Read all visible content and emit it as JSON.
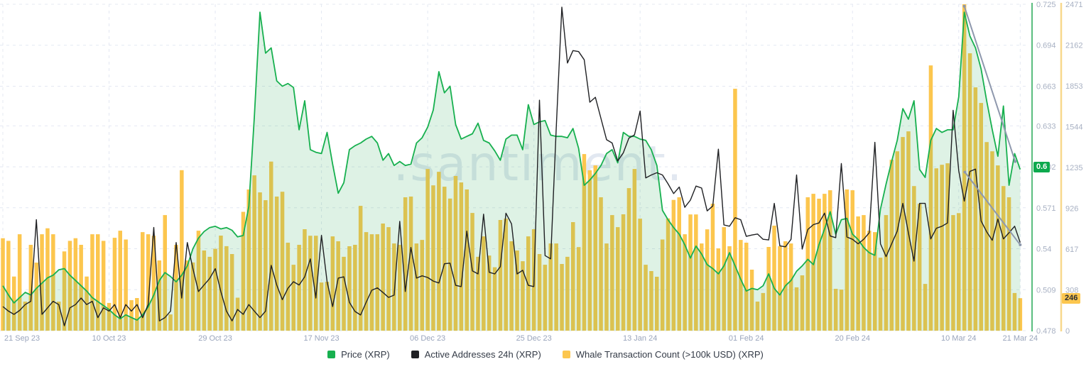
{
  "watermark": {
    "text": ".santiment."
  },
  "legend": {
    "items": [
      {
        "label": "Price (XRP)",
        "color": "#17b04f"
      },
      {
        "label": "Active Addresses 24h (XRP)",
        "color": "#1f2023"
      },
      {
        "label": "Whale Transaction Count (>100k USD) (XRP)",
        "color": "#fcc64e"
      }
    ]
  },
  "badges": {
    "price": {
      "text": "0.6",
      "bg": "#0ca94d",
      "fg": "#ffffff"
    },
    "whale": {
      "text": "246",
      "bg": "#fcc64e",
      "fg": "#272c33"
    }
  },
  "chart_data": {
    "type": "mixed",
    "title": "",
    "x": {
      "start_label": "21 Sep 23",
      "end_label": "21 Mar 24",
      "days": 183,
      "tick_labels": [
        "21 Sep 23",
        "10 Oct 23",
        "29 Oct 23",
        "17 Nov 23",
        "06 Dec 23",
        "25 Dec 23",
        "13 Jan 24",
        "01 Feb 24",
        "20 Feb 24",
        "10 Mar 24",
        "21 Mar 24"
      ],
      "tick_day_index": [
        0,
        19,
        38,
        57,
        76,
        95,
        114,
        133,
        152,
        171,
        182
      ],
      "label_color": "#9aa5bc"
    },
    "axes": {
      "price": {
        "side": "right-inner",
        "min": 0.478,
        "max": 0.725,
        "ticks": [
          "0.725",
          "0.694",
          "0.663",
          "0.633",
          "0.602",
          "0.571",
          "0.54",
          "0.509",
          "0.478"
        ],
        "line_color": "#5abd7f",
        "label_color": "#a8b1c3"
      },
      "whale": {
        "side": "right-outer",
        "min": 0,
        "max": 2471,
        "ticks": [
          "2471",
          "2162",
          "1853",
          "1544",
          "1235",
          "926",
          "617",
          "308",
          "0"
        ],
        "line_color": "#f8d88c",
        "label_color": "#a8b1c3"
      }
    },
    "grid": {
      "color": "#e4e8f2",
      "dash": "4 5"
    },
    "series": [
      {
        "name": "Price (XRP)",
        "type": "line-area",
        "axis": "price",
        "color": "#17b04f",
        "fill": "rgba(47,177,92,0.16)",
        "values": [
          0.512,
          0.505,
          0.499,
          0.503,
          0.507,
          0.505,
          0.51,
          0.514,
          0.518,
          0.52,
          0.524,
          0.525,
          0.52,
          0.516,
          0.512,
          0.508,
          0.503,
          0.5,
          0.497,
          0.494,
          0.49,
          0.487,
          0.49,
          0.488,
          0.486,
          0.49,
          0.496,
          0.505,
          0.516,
          0.522,
          0.519,
          0.515,
          0.52,
          0.527,
          0.54,
          0.548,
          0.553,
          0.556,
          0.557,
          0.555,
          0.556,
          0.554,
          0.549,
          0.55,
          0.572,
          0.64,
          0.719,
          0.688,
          0.692,
          0.667,
          0.663,
          0.665,
          0.662,
          0.63,
          0.652,
          0.615,
          0.613,
          0.612,
          0.628,
          0.604,
          0.582,
          0.59,
          0.615,
          0.618,
          0.62,
          0.623,
          0.625,
          0.62,
          0.607,
          0.612,
          0.603,
          0.606,
          0.603,
          0.604,
          0.62,
          0.624,
          0.632,
          0.645,
          0.674,
          0.658,
          0.663,
          0.634,
          0.623,
          0.625,
          0.627,
          0.635,
          0.622,
          0.62,
          0.614,
          0.607,
          0.623,
          0.626,
          0.626,
          0.615,
          0.649,
          0.634,
          0.636,
          0.637,
          0.626,
          0.625,
          0.625,
          0.624,
          0.631,
          0.616,
          0.588,
          0.592,
          0.597,
          0.603,
          0.612,
          0.615,
          0.605,
          0.628,
          0.625,
          0.625,
          0.623,
          0.622,
          0.615,
          0.603,
          0.569,
          0.562,
          0.556,
          0.551,
          0.543,
          0.533,
          0.542,
          0.536,
          0.528,
          0.525,
          0.521,
          0.527,
          0.537,
          0.527,
          0.517,
          0.508,
          0.51,
          0.509,
          0.512,
          0.521,
          0.51,
          0.505,
          0.512,
          0.516,
          0.523,
          0.527,
          0.532,
          0.528,
          0.543,
          0.555,
          0.568,
          0.551,
          0.562,
          0.563,
          0.551,
          0.547,
          0.541,
          0.537,
          0.535,
          0.57,
          0.589,
          0.606,
          0.622,
          0.646,
          0.638,
          0.652,
          0.6,
          0.594,
          0.622,
          0.631,
          0.628,
          0.63,
          0.63,
          0.655,
          0.719,
          0.701,
          0.692,
          0.676,
          0.652,
          0.63,
          0.61,
          0.648,
          0.588,
          0.612,
          0.6
        ]
      },
      {
        "name": "Active Addresses 24h (XRP)",
        "type": "line",
        "axis": "hidden",
        "unit": "fraction_of_plot_height",
        "color": "#1f2023",
        "values": [
          0.074,
          0.06,
          0.05,
          0.062,
          0.08,
          0.09,
          0.34,
          0.05,
          0.07,
          0.09,
          0.08,
          0.015,
          0.07,
          0.08,
          0.1,
          0.08,
          0.09,
          0.04,
          0.07,
          0.06,
          0.08,
          0.04,
          0.08,
          0.06,
          0.08,
          0.04,
          0.08,
          0.316,
          0.03,
          0.04,
          0.06,
          0.27,
          0.1,
          0.27,
          0.19,
          0.12,
          0.14,
          0.16,
          0.19,
          0.12,
          0.06,
          0.03,
          0.065,
          0.05,
          0.08,
          0.06,
          0.04,
          0.06,
          0.2,
          0.14,
          0.095,
          0.13,
          0.15,
          0.14,
          0.165,
          0.22,
          0.1,
          0.292,
          0.15,
          0.074,
          0.161,
          0.165,
          0.087,
          0.059,
          0.048,
          0.087,
          0.124,
          0.131,
          0.117,
          0.102,
          0.109,
          0.335,
          0.12,
          0.255,
          0.161,
          0.168,
          0.163,
          0.152,
          0.146,
          0.205,
          0.207,
          0.139,
          0.135,
          0.305,
          0.183,
          0.174,
          0.357,
          0.179,
          0.174,
          0.196,
          0.36,
          0.327,
          0.174,
          0.185,
          0.139,
          0.135,
          0.706,
          0.23,
          0.22,
          0.62,
          0.991,
          0.82,
          0.858,
          0.855,
          0.83,
          0.7,
          0.715,
          0.65,
          0.585,
          0.575,
          0.52,
          0.545,
          0.59,
          0.6,
          0.673,
          0.468,
          0.477,
          0.484,
          0.477,
          0.45,
          0.42,
          0.44,
          0.378,
          0.4,
          0.443,
          0.437,
          0.367,
          0.382,
          0.556,
          0.324,
          0.32,
          0.346,
          0.34,
          0.289,
          0.293,
          0.296,
          0.28,
          0.278,
          0.39,
          0.26,
          0.257,
          0.28,
          0.477,
          0.25,
          0.31,
          0.325,
          0.33,
          0.36,
          0.29,
          0.285,
          0.512,
          0.287,
          0.28,
          0.266,
          0.28,
          0.3,
          0.577,
          0.266,
          0.227,
          0.266,
          0.305,
          0.39,
          0.3,
          0.213,
          0.39,
          0.39,
          0.281,
          0.314,
          0.32,
          0.33,
          0.675,
          0.49,
          0.397,
          0.488,
          0.495,
          0.336,
          0.303,
          0.277,
          0.342,
          0.281,
          0.3,
          0.32,
          0.27
        ]
      },
      {
        "name": "Whale Transaction Count (>100k USD) (XRP)",
        "type": "bar",
        "axis": "whale",
        "color": "#fcc64e",
        "values": [
          700,
          680,
          410,
          730,
          220,
          650,
          515,
          730,
          775,
          730,
          220,
          600,
          680,
          700,
          650,
          410,
          730,
          730,
          680,
          210,
          703,
          757,
          690,
          231,
          247,
          746,
          730,
          719,
          532,
          875,
          123,
          650,
          1215,
          532,
          516,
          757,
          607,
          559,
          620,
          720,
          640,
          580,
          250,
          900,
          1069,
          1176,
          1047,
          988,
          1280,
          1015,
          1052,
          666,
          499,
          650,
          768,
          719,
          719,
          365,
          370,
          714,
          677,
          559,
          639,
          650,
          945,
          746,
          730,
          730,
          811,
          784,
          660,
          650,
          1010,
          1015,
          660,
          687,
          1224,
          1100,
          1203,
          1090,
          1000,
          1171,
          1122,
          1069,
          891,
          559,
          714,
          569,
          480,
          838,
          849,
          677,
          607,
          526,
          714,
          768,
          580,
          499,
          660,
          660,
          505,
          559,
          822,
          633,
          1337,
          1214,
          1251,
          1010,
          660,
          875,
          784,
          881,
          1079,
          1224,
          848,
          499,
          451,
          408,
          690,
          850,
          990,
          1010,
          730,
          880,
          880,
          660,
          767,
          961,
          623,
          784,
          639,
          1831,
          687,
          666,
          462,
          220,
          285,
          634,
          795,
          639,
          677,
          660,
          328,
          419,
          1010,
          1036,
          999,
          1036,
          1063,
          317,
          311,
          1069,
          1063,
          865,
          875,
          757,
          746,
          553,
          875,
          1294,
          1358,
          1466,
          1509,
          1095,
          961,
          354,
          2008,
          1229,
          1256,
          1267,
          875,
          890,
          2471,
          2100,
          1842,
          1724,
          1428,
          1358,
          1251,
          1095,
          1010,
          285,
          246
        ]
      }
    ],
    "annotations": {
      "color": "#8e98ad",
      "trend_lines": [
        {
          "from_day": 172.0,
          "from_price": 0.7235,
          "to_day": 181.1,
          "to_price": 0.606
        },
        {
          "from_day": 172.1,
          "from_price": 0.598,
          "to_day": 182.0,
          "to_price": 0.543
        }
      ]
    },
    "last_values": {
      "price": "0.6",
      "whale": "246"
    }
  }
}
